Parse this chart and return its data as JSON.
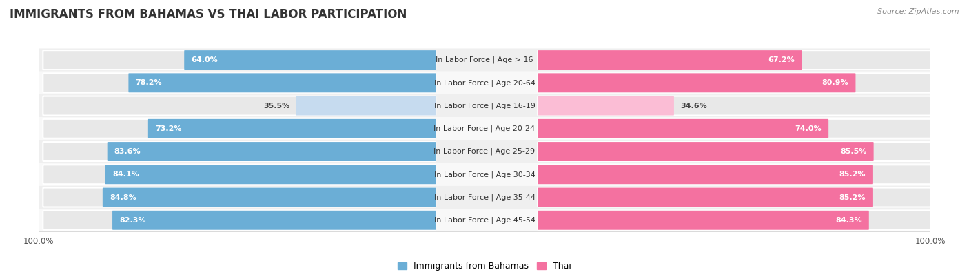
{
  "title": "IMMIGRANTS FROM BAHAMAS VS THAI LABOR PARTICIPATION",
  "source": "Source: ZipAtlas.com",
  "categories": [
    "In Labor Force | Age > 16",
    "In Labor Force | Age 20-64",
    "In Labor Force | Age 16-19",
    "In Labor Force | Age 20-24",
    "In Labor Force | Age 25-29",
    "In Labor Force | Age 30-34",
    "In Labor Force | Age 35-44",
    "In Labor Force | Age 45-54"
  ],
  "bahamas_values": [
    64.0,
    78.2,
    35.5,
    73.2,
    83.6,
    84.1,
    84.8,
    82.3
  ],
  "thai_values": [
    67.2,
    80.9,
    34.6,
    74.0,
    85.5,
    85.2,
    85.2,
    84.3
  ],
  "bahamas_color": "#6BAED6",
  "bahamas_color_light": "#C6DBEF",
  "thai_color": "#F471A0",
  "thai_color_light": "#FBBDD5",
  "row_bg_color_odd": "#EFEFEF",
  "row_bg_color_even": "#F8F8F8",
  "pill_bg_color": "#E8E8E8",
  "max_value": 100.0,
  "title_fontsize": 12,
  "label_fontsize": 8,
  "value_fontsize": 8,
  "legend_fontsize": 9,
  "axis_label_fontsize": 8.5
}
